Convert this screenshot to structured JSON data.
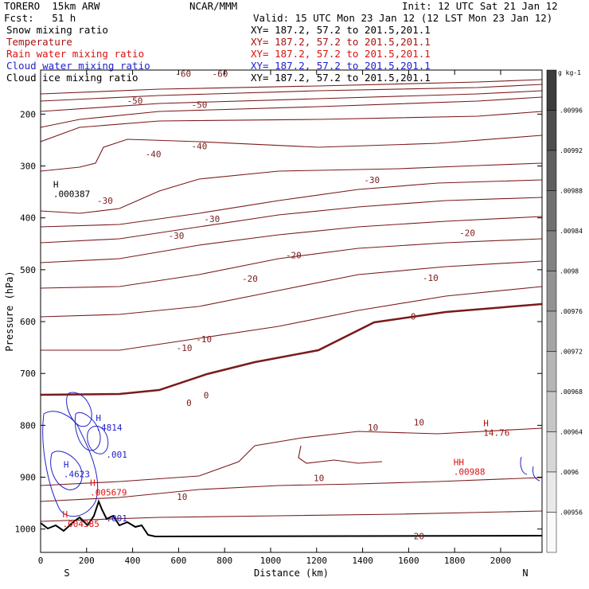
{
  "header": {
    "model": "TORERO  15km ARW",
    "center": "NCAR/MMM",
    "init": "Init: 12 UTC Sat 21 Jan 12",
    "fcst": "Fcst:   51 h",
    "valid": "Valid: 15 UTC Mon 23 Jan 12 (12 LST Mon 23 Jan 12)"
  },
  "fields": [
    {
      "name": "Snow mixing ratio",
      "xy": "XY= 187.2, 57.2 to 201.5,201.1",
      "color": "#000000"
    },
    {
      "name": "Temperature",
      "xy": "XY= 187.2, 57.2 to 201.5,201.1",
      "color": "#aa1111"
    },
    {
      "name": "Rain water mixing ratio",
      "xy": "XY= 187.2, 57.2 to 201.5,201.1",
      "color": "#dd1111"
    },
    {
      "name": "Cloud water mixing ratio",
      "xy": "XY= 187.2, 57.2 to 201.5,201.1",
      "color": "#2222cc"
    },
    {
      "name": "Cloud ice mixing ratio",
      "xy": "XY= 187.2, 57.2 to 201.5,201.1",
      "color": "#000000"
    }
  ],
  "chart_data": {
    "type": "contour",
    "xlabel": "Distance (km)",
    "ylabel": "Pressure (hPa)",
    "xlim": [
      0,
      2180
    ],
    "ylim": [
      1045,
      115
    ],
    "x_ticks": [
      0,
      200,
      400,
      600,
      800,
      1000,
      1200,
      1400,
      1600,
      1800,
      2000
    ],
    "y_ticks": [
      200,
      300,
      400,
      500,
      600,
      700,
      800,
      900,
      1000
    ],
    "x_end_labels": {
      "left": "S",
      "right": "N"
    },
    "temperature_labels": [
      {
        "text": "-60",
        "x": 620,
        "p": 128
      },
      {
        "text": "-60",
        "x": 780,
        "p": 128
      },
      {
        "text": "-50",
        "x": 410,
        "p": 180
      },
      {
        "text": "-50",
        "x": 690,
        "p": 188
      },
      {
        "text": "-40",
        "x": 490,
        "p": 283
      },
      {
        "text": "-40",
        "x": 690,
        "p": 268
      },
      {
        "text": "-30",
        "x": 280,
        "p": 373
      },
      {
        "text": "-30",
        "x": 745,
        "p": 408
      },
      {
        "text": "-30",
        "x": 1440,
        "p": 333
      },
      {
        "text": "-30",
        "x": 590,
        "p": 440
      },
      {
        "text": "-20",
        "x": 1100,
        "p": 478
      },
      {
        "text": "-20",
        "x": 910,
        "p": 523
      },
      {
        "text": "-20",
        "x": 1855,
        "p": 435
      },
      {
        "text": "-10",
        "x": 1695,
        "p": 522
      },
      {
        "text": "-10",
        "x": 710,
        "p": 640
      },
      {
        "text": "-10",
        "x": 625,
        "p": 657
      },
      {
        "text": "0",
        "x": 1620,
        "p": 596
      },
      {
        "text": "0",
        "x": 720,
        "p": 748
      },
      {
        "text": "0",
        "x": 645,
        "p": 763
      },
      {
        "text": "10",
        "x": 1445,
        "p": 810
      },
      {
        "text": "10",
        "x": 1645,
        "p": 800
      },
      {
        "text": "10",
        "x": 1210,
        "p": 908
      },
      {
        "text": "10",
        "x": 615,
        "p": 944
      },
      {
        "text": "20",
        "x": 1645,
        "p": 1020
      }
    ],
    "extrema": [
      {
        "letter": "H",
        "value": ".000387",
        "x": 55,
        "p": 360,
        "color": "#000000"
      },
      {
        "letter": "H",
        "value": ".4814",
        "x": 240,
        "p": 810,
        "color": "#2222cc"
      },
      {
        "letter": "H",
        "value": ".4623",
        "x": 100,
        "p": 900,
        "color": "#2222cc"
      },
      {
        "letter": "H",
        "value": ".005679",
        "x": 215,
        "p": 935,
        "color": "#dd1111"
      },
      {
        "letter": "H",
        "value": ".004385",
        "x": 95,
        "p": 996,
        "color": "#dd1111"
      },
      {
        "letter": "H",
        "value": "14.76",
        "x": 1925,
        "p": 820,
        "color": "#aa1111"
      },
      {
        "letter": "HH",
        "value": ".00988",
        "x": 1795,
        "p": 895,
        "color": "#dd1111"
      }
    ],
    "misc_labels": [
      {
        "text": ".001",
        "x": 285,
        "p": 862,
        "color": "#2222cc"
      },
      {
        "text": ".001",
        "x": 285,
        "p": 985,
        "color": "#2222cc"
      }
    ],
    "colorbar": {
      "unit": "g kg-1",
      "ticks": [
        ".00996",
        ".00992",
        ".00988",
        ".00984",
        ".0098",
        ".00976",
        ".00972",
        ".00968",
        ".00964",
        ".0096",
        ".00956"
      ]
    }
  }
}
